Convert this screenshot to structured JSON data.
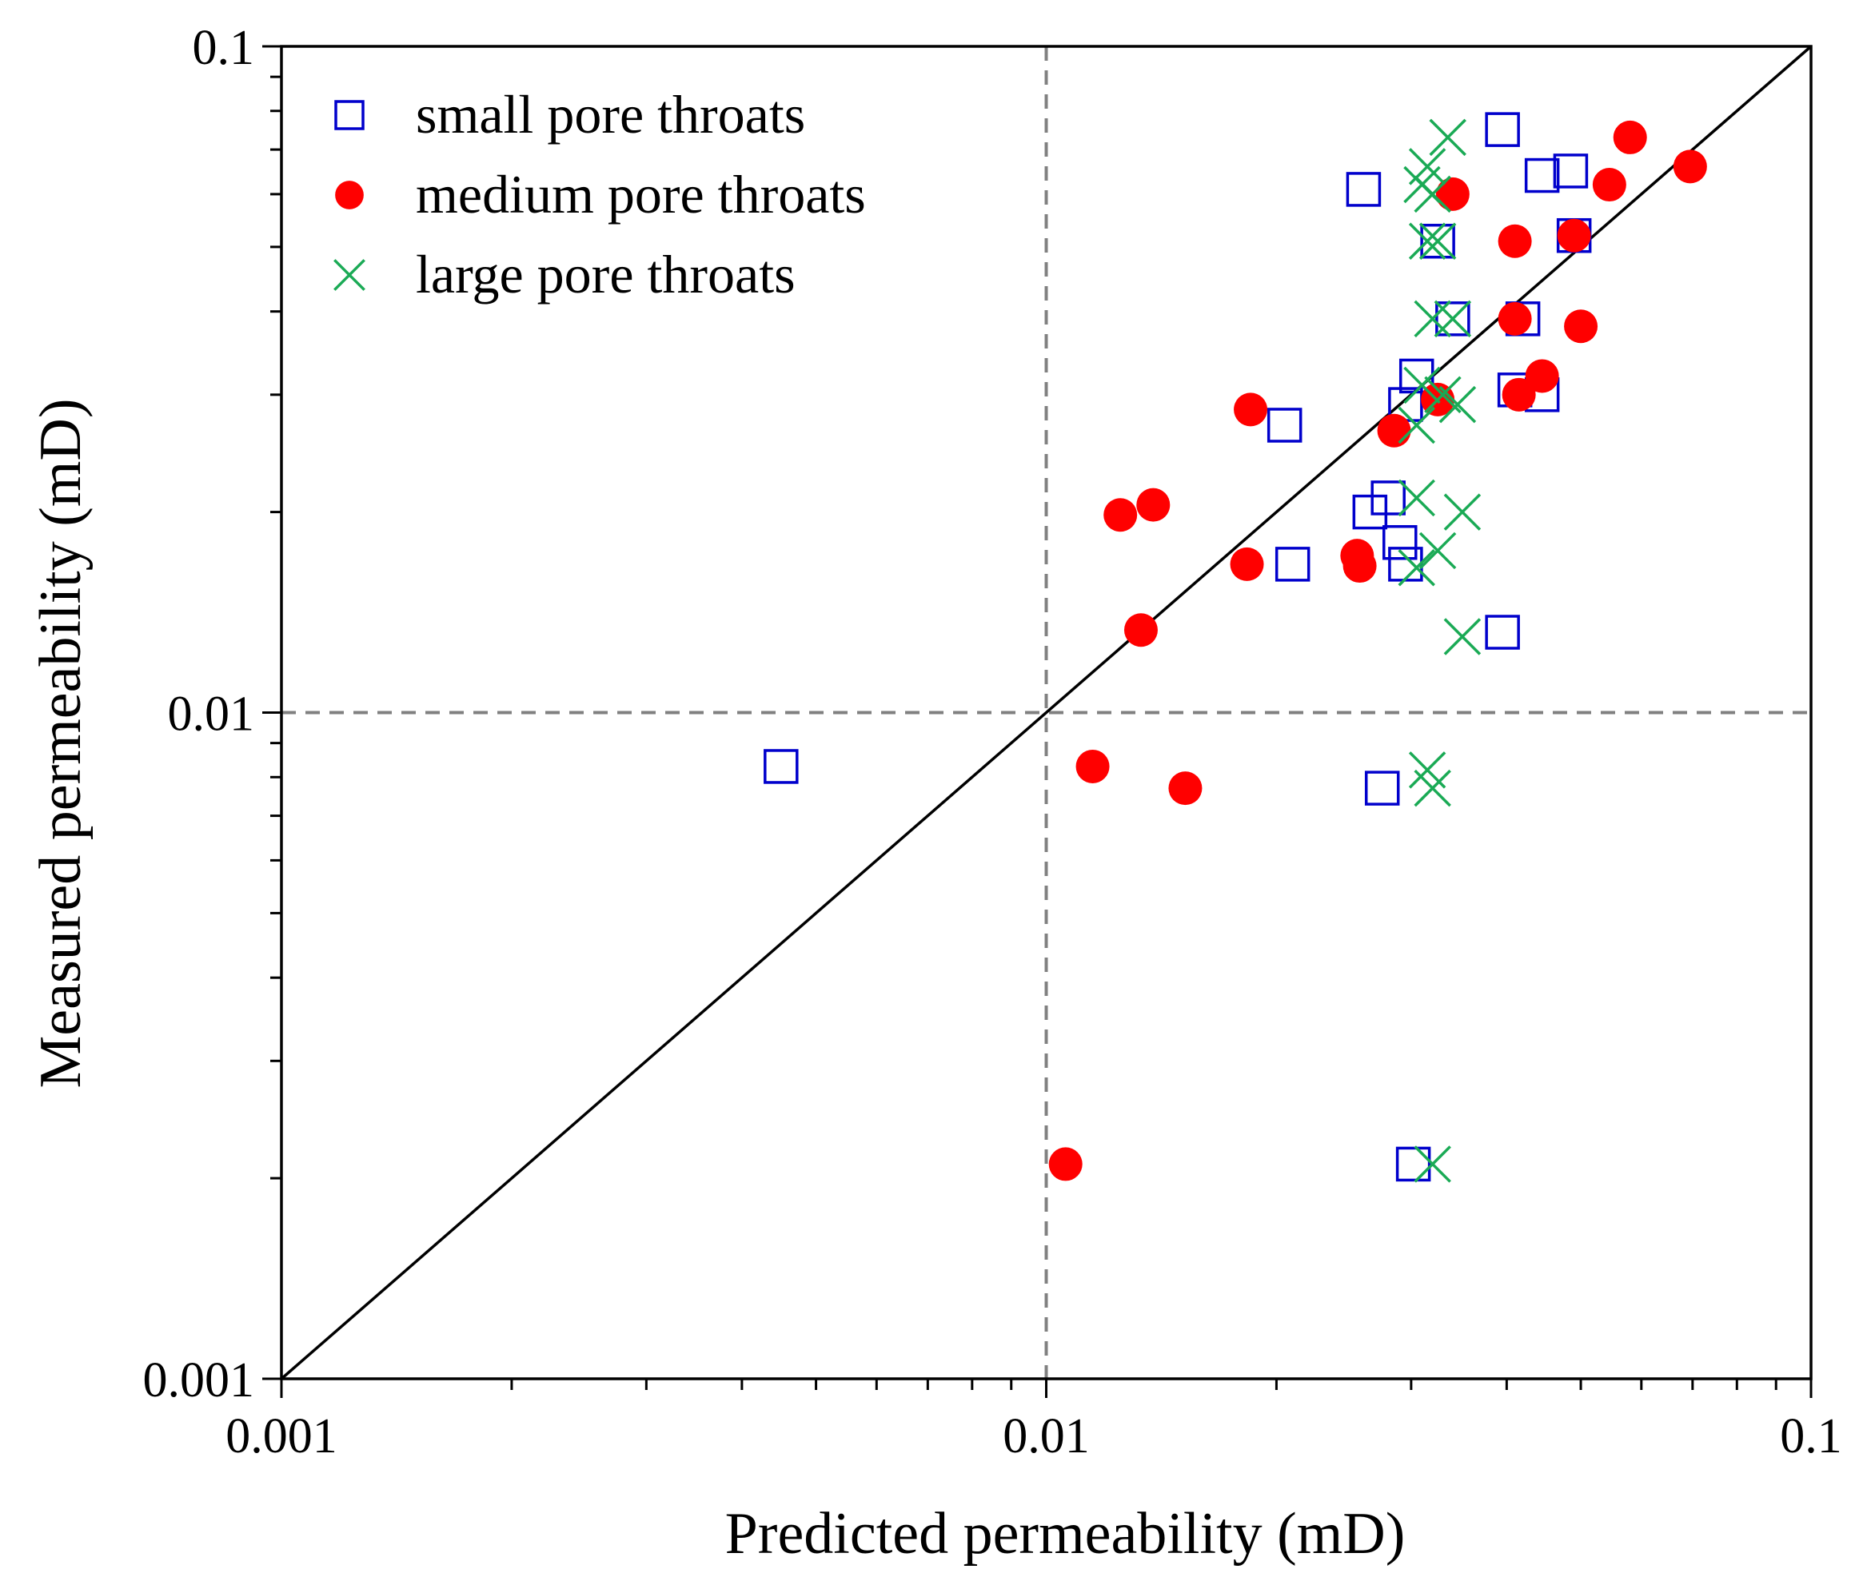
{
  "chart_data": {
    "type": "scatter",
    "title": "",
    "xlabel": "Predicted permeability (mD)",
    "ylabel": "Measured permeability (mD)",
    "x_scale": "log",
    "y_scale": "log",
    "xlim": [
      0.001,
      0.1
    ],
    "ylim": [
      0.001,
      0.1
    ],
    "x_ticks": [
      {
        "value": 0.001,
        "label": "0.001"
      },
      {
        "value": 0.01,
        "label": "0.01"
      },
      {
        "value": 0.1,
        "label": "0.1"
      }
    ],
    "y_ticks": [
      {
        "value": 0.001,
        "label": "0.001"
      },
      {
        "value": 0.01,
        "label": "0.01"
      },
      {
        "value": 0.1,
        "label": "0.1"
      }
    ],
    "reference_line": {
      "type": "1:1",
      "from": [
        0.001,
        0.001
      ],
      "to": [
        0.1,
        0.1
      ],
      "color": "#000000"
    },
    "reference_lines_dashed": {
      "x": 0.01,
      "y": 0.01,
      "color": "#808080"
    },
    "legend_position": "top-left",
    "series": [
      {
        "name": "small pore throats",
        "marker": "square-open",
        "color": "#0000CC",
        "points": [
          [
            0.0045,
            0.0083
          ],
          [
            0.026,
            0.061
          ],
          [
            0.0395,
            0.075
          ],
          [
            0.0445,
            0.064
          ],
          [
            0.0485,
            0.065
          ],
          [
            0.0325,
            0.051
          ],
          [
            0.049,
            0.052
          ],
          [
            0.034,
            0.039
          ],
          [
            0.042,
            0.039
          ],
          [
            0.0305,
            0.032
          ],
          [
            0.0295,
            0.029
          ],
          [
            0.041,
            0.0305
          ],
          [
            0.0445,
            0.03
          ],
          [
            0.0205,
            0.027
          ],
          [
            0.028,
            0.021
          ],
          [
            0.0265,
            0.02
          ],
          [
            0.029,
            0.018
          ],
          [
            0.0295,
            0.0167
          ],
          [
            0.021,
            0.0167
          ],
          [
            0.0395,
            0.0132
          ],
          [
            0.0275,
            0.0077
          ],
          [
            0.0302,
            0.0021
          ]
        ]
      },
      {
        "name": "medium pore throats",
        "marker": "circle-filled",
        "color": "#FF0000",
        "points": [
          [
            0.0695,
            0.066
          ],
          [
            0.058,
            0.073
          ],
          [
            0.0545,
            0.062
          ],
          [
            0.034,
            0.06
          ],
          [
            0.041,
            0.051
          ],
          [
            0.049,
            0.052
          ],
          [
            0.041,
            0.039
          ],
          [
            0.05,
            0.038
          ],
          [
            0.0445,
            0.032
          ],
          [
            0.0415,
            0.03
          ],
          [
            0.0325,
            0.0295
          ],
          [
            0.0185,
            0.0285
          ],
          [
            0.0285,
            0.0265
          ],
          [
            0.0138,
            0.0205
          ],
          [
            0.0125,
            0.0198
          ],
          [
            0.0255,
            0.0172
          ],
          [
            0.0183,
            0.0167
          ],
          [
            0.0257,
            0.0166
          ],
          [
            0.0133,
            0.0133
          ],
          [
            0.0115,
            0.0083
          ],
          [
            0.0152,
            0.0077
          ],
          [
            0.0106,
            0.0021
          ]
        ]
      },
      {
        "name": "large pore throats",
        "marker": "x",
        "color": "#1AAA55",
        "points": [
          [
            0.0335,
            0.073
          ],
          [
            0.0315,
            0.066
          ],
          [
            0.031,
            0.062
          ],
          [
            0.032,
            0.06
          ],
          [
            0.0315,
            0.051
          ],
          [
            0.0325,
            0.051
          ],
          [
            0.032,
            0.039
          ],
          [
            0.034,
            0.039
          ],
          [
            0.031,
            0.031
          ],
          [
            0.033,
            0.03
          ],
          [
            0.0345,
            0.029
          ],
          [
            0.0305,
            0.027
          ],
          [
            0.0305,
            0.021
          ],
          [
            0.035,
            0.02
          ],
          [
            0.0325,
            0.0175
          ],
          [
            0.0305,
            0.0165
          ],
          [
            0.035,
            0.013
          ],
          [
            0.0315,
            0.0082
          ],
          [
            0.032,
            0.0077
          ],
          [
            0.032,
            0.0021
          ]
        ]
      }
    ]
  }
}
